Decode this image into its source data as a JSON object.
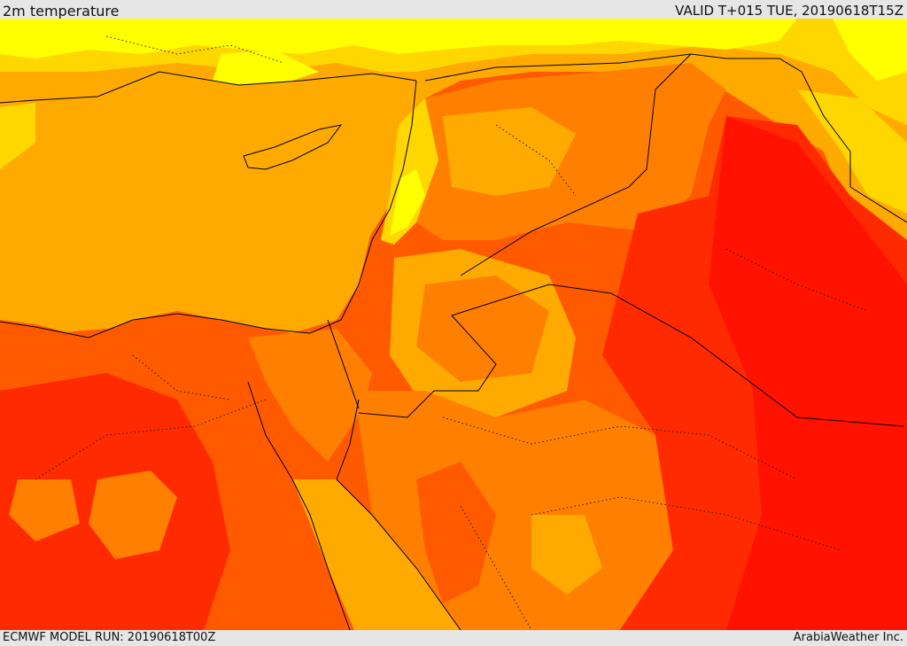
{
  "header": {
    "title": "2m temperature",
    "valid_time": "VALID T+015 TUE, 20190618T15Z"
  },
  "footer": {
    "model_run": "ECMWF MODEL RUN: 20190618T00Z",
    "credit": "ArabiaWeather Inc."
  },
  "palette": {
    "warm_yellow": "#ffff00",
    "light_orange": "#ffd700",
    "mid_orange": "#ffaa00",
    "deep_orange": "#ff7f00",
    "orange_red": "#ff5a00",
    "hot_red": "#ff2a00",
    "hottest_red": "#ff1200",
    "background": "#e6e6e6"
  }
}
